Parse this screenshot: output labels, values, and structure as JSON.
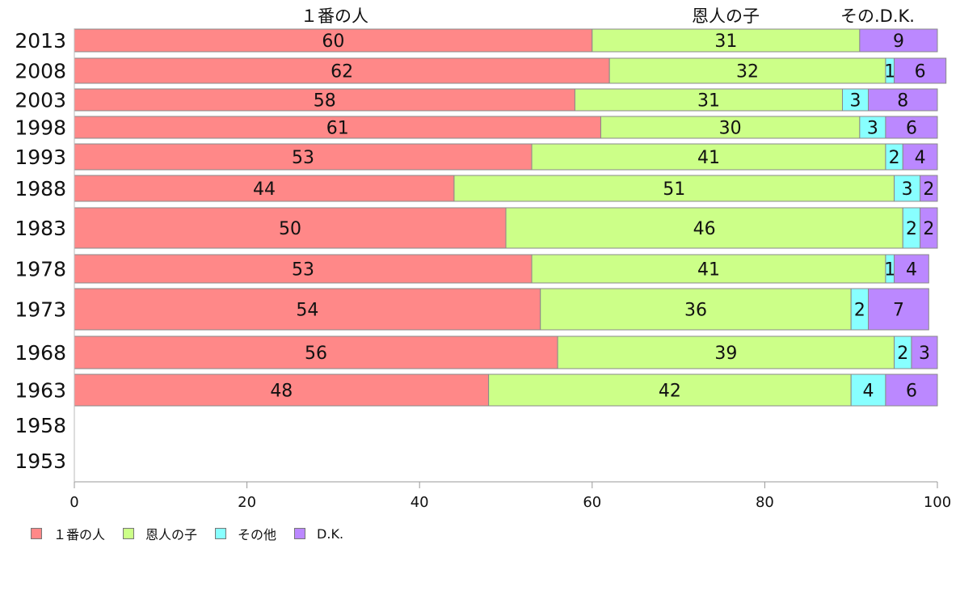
{
  "chart_data": {
    "type": "bar",
    "orientation": "horizontal",
    "stacked": true,
    "headers": [
      "１番の人",
      "恩人の子",
      "その.D.K."
    ],
    "categories": [
      "2013",
      "2008",
      "2003",
      "1998",
      "1993",
      "1988",
      "1983",
      "1978",
      "1973",
      "1968",
      "1963",
      "1958",
      "1953"
    ],
    "series": [
      {
        "name": "１番の人",
        "color": "#ff8888",
        "values": [
          60,
          62,
          58,
          61,
          53,
          44,
          50,
          53,
          54,
          56,
          48,
          null,
          null
        ]
      },
      {
        "name": "恩人の子",
        "color": "#ccff88",
        "values": [
          31,
          32,
          31,
          30,
          41,
          51,
          46,
          41,
          36,
          39,
          42,
          null,
          null
        ]
      },
      {
        "name": "その他",
        "color": "#88ffff",
        "values": [
          0,
          1,
          3,
          3,
          2,
          3,
          2,
          1,
          2,
          2,
          4,
          null,
          null
        ]
      },
      {
        "name": "D.K.",
        "color": "#bb88ff",
        "values": [
          9,
          6,
          8,
          6,
          4,
          2,
          2,
          4,
          7,
          3,
          6,
          null,
          null
        ]
      }
    ],
    "xlim": [
      0,
      100
    ],
    "xticks": [
      "0",
      "20",
      "40",
      "60",
      "80",
      "100"
    ],
    "grid": false,
    "legend_position": "bottom-left"
  }
}
